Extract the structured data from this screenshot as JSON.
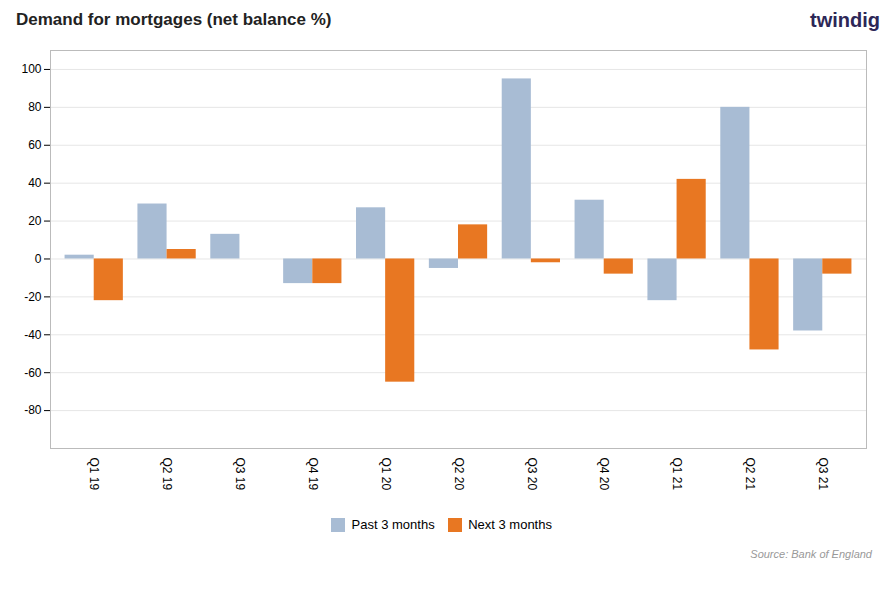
{
  "chart_data": {
    "type": "bar",
    "title": "Demand for mortgages (net balance %)",
    "categories": [
      "Q1 19",
      "Q2 19",
      "Q3 19",
      "Q4 19",
      "Q1 20",
      "Q2 20",
      "Q3 20",
      "Q4 20",
      "Q1 21",
      "Q2 21",
      "Q3 21"
    ],
    "series": [
      {
        "name": "Past 3 months",
        "color": "#a8bcd4",
        "values": [
          2,
          29,
          13,
          -13,
          27,
          -5,
          95,
          31,
          -22,
          80,
          -38
        ]
      },
      {
        "name": "Next 3 months",
        "color": "#e87722",
        "values": [
          -22,
          5,
          0,
          -13,
          -65,
          18,
          -2,
          -8,
          42,
          -48,
          -8
        ]
      }
    ],
    "ylim": [
      -100,
      110
    ],
    "yticks": [
      -80,
      -60,
      -40,
      -20,
      0,
      20,
      40,
      60,
      80,
      100
    ],
    "grid": true,
    "legend": "bottom",
    "annotations": [
      "Source: Bank of England",
      "twindig"
    ]
  }
}
